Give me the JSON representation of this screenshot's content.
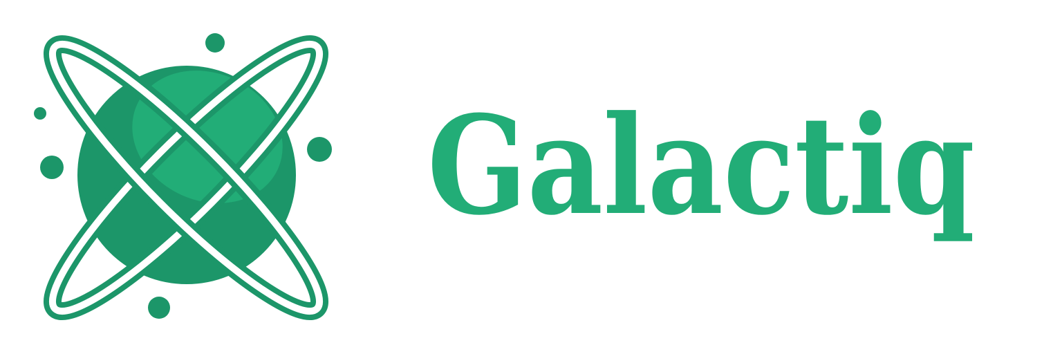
{
  "logo": {
    "name": "Galactiq"
  }
}
